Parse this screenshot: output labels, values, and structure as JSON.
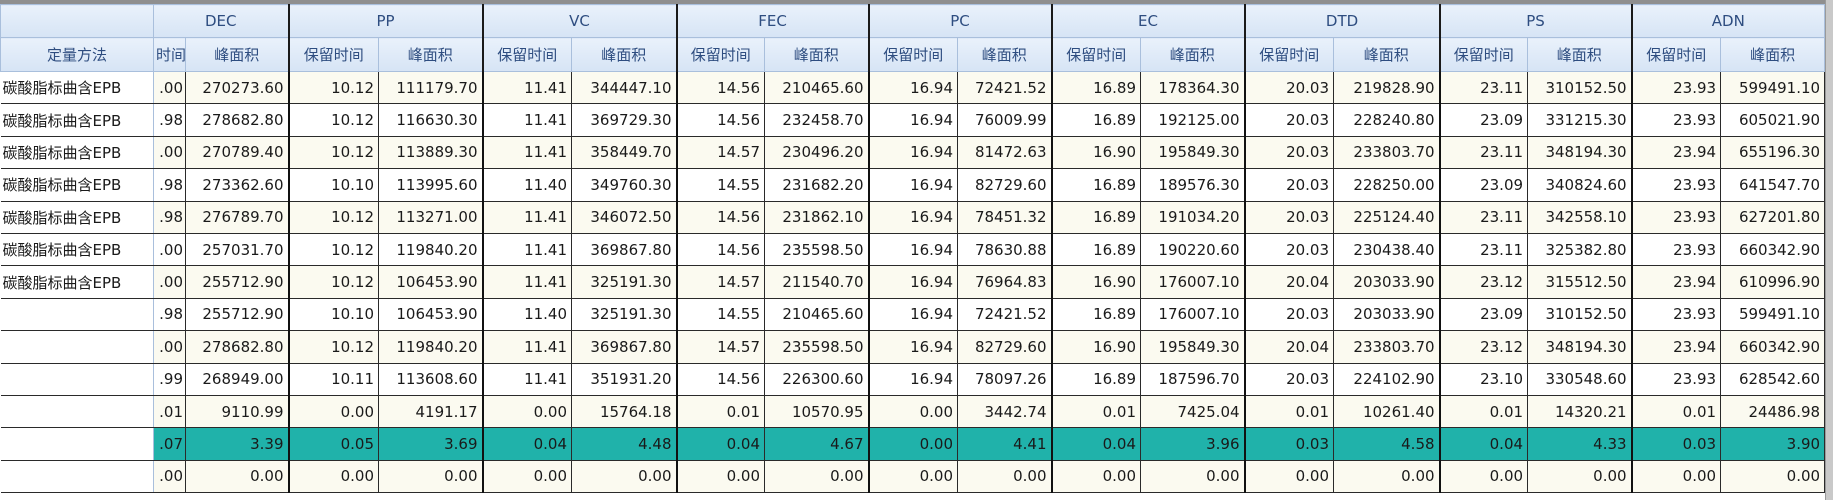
{
  "table": {
    "method_header": "定量方法",
    "sub_headers": {
      "retention_time": "保留时间",
      "retention_time_partial": "时间",
      "peak_area": "峰面积"
    },
    "groups": [
      "DEC",
      "PP",
      "VC",
      "FEC",
      "PC",
      "EC",
      "DTD",
      "PS",
      "ADN"
    ],
    "highlight_color": "#20b2aa",
    "rows": [
      {
        "method": "碳酸脂标曲含EPB",
        "values": [
          ".00",
          "270273.60",
          "10.12",
          "111179.70",
          "11.41",
          "344447.10",
          "14.56",
          "210465.60",
          "16.94",
          "72421.52",
          "16.89",
          "178364.30",
          "20.03",
          "219828.90",
          "23.11",
          "310152.50",
          "23.93",
          "599491.10"
        ]
      },
      {
        "method": "碳酸脂标曲含EPB",
        "values": [
          ".98",
          "278682.80",
          "10.12",
          "116630.30",
          "11.41",
          "369729.30",
          "14.56",
          "232458.70",
          "16.94",
          "76009.99",
          "16.89",
          "192125.00",
          "20.03",
          "228240.80",
          "23.09",
          "331215.30",
          "23.93",
          "605021.90"
        ]
      },
      {
        "method": "碳酸脂标曲含EPB",
        "values": [
          ".00",
          "270789.40",
          "10.12",
          "113889.30",
          "11.41",
          "358449.70",
          "14.57",
          "230496.20",
          "16.94",
          "81472.63",
          "16.90",
          "195849.30",
          "20.03",
          "233803.70",
          "23.11",
          "348194.30",
          "23.94",
          "655196.30"
        ]
      },
      {
        "method": "碳酸脂标曲含EPB",
        "values": [
          ".98",
          "273362.60",
          "10.10",
          "113995.60",
          "11.40",
          "349760.30",
          "14.55",
          "231682.20",
          "16.94",
          "82729.60",
          "16.89",
          "189576.30",
          "20.03",
          "228250.00",
          "23.09",
          "340824.60",
          "23.93",
          "641547.70"
        ]
      },
      {
        "method": "碳酸脂标曲含EPB",
        "values": [
          ".98",
          "276789.70",
          "10.12",
          "113271.00",
          "11.41",
          "346072.50",
          "14.56",
          "231862.10",
          "16.94",
          "78451.32",
          "16.89",
          "191034.20",
          "20.03",
          "225124.40",
          "23.11",
          "342558.10",
          "23.93",
          "627201.80"
        ]
      },
      {
        "method": "碳酸脂标曲含EPB",
        "values": [
          ".00",
          "257031.70",
          "10.12",
          "119840.20",
          "11.41",
          "369867.80",
          "14.56",
          "235598.50",
          "16.94",
          "78630.88",
          "16.89",
          "190220.60",
          "20.03",
          "230438.40",
          "23.11",
          "325382.80",
          "23.93",
          "660342.90"
        ]
      },
      {
        "method": "碳酸脂标曲含EPB",
        "values": [
          ".00",
          "255712.90",
          "10.12",
          "106453.90",
          "11.41",
          "325191.30",
          "14.57",
          "211540.70",
          "16.94",
          "76964.83",
          "16.90",
          "176007.10",
          "20.04",
          "203033.90",
          "23.12",
          "315512.50",
          "23.94",
          "610996.90"
        ]
      },
      {
        "method": "",
        "values": [
          ".98",
          "255712.90",
          "10.10",
          "106453.90",
          "11.40",
          "325191.30",
          "14.55",
          "210465.60",
          "16.94",
          "72421.52",
          "16.89",
          "176007.10",
          "20.03",
          "203033.90",
          "23.09",
          "310152.50",
          "23.93",
          "599491.10"
        ]
      },
      {
        "method": "",
        "values": [
          ".00",
          "278682.80",
          "10.12",
          "119840.20",
          "11.41",
          "369867.80",
          "14.57",
          "235598.50",
          "16.94",
          "82729.60",
          "16.90",
          "195849.30",
          "20.04",
          "233803.70",
          "23.12",
          "348194.30",
          "23.94",
          "660342.90"
        ]
      },
      {
        "method": "",
        "values": [
          ".99",
          "268949.00",
          "10.11",
          "113608.60",
          "11.41",
          "351931.20",
          "14.56",
          "226300.60",
          "16.94",
          "78097.26",
          "16.89",
          "187596.70",
          "20.03",
          "224102.90",
          "23.10",
          "330548.60",
          "23.93",
          "628542.60"
        ]
      },
      {
        "method": "",
        "values": [
          ".01",
          "9110.99",
          "0.00",
          "4191.17",
          "0.00",
          "15764.18",
          "0.01",
          "10570.95",
          "0.00",
          "3442.74",
          "0.01",
          "7425.04",
          "0.01",
          "10261.40",
          "0.01",
          "14320.21",
          "0.01",
          "24486.98"
        ]
      },
      {
        "method": "",
        "highlight": true,
        "values": [
          ".07",
          "3.39",
          "0.05",
          "3.69",
          "0.04",
          "4.48",
          "0.04",
          "4.67",
          "0.00",
          "4.41",
          "0.04",
          "3.96",
          "0.03",
          "4.58",
          "0.04",
          "4.33",
          "0.03",
          "3.90"
        ]
      },
      {
        "method": "",
        "values": [
          ".00",
          "0.00",
          "0.00",
          "0.00",
          "0.00",
          "0.00",
          "0.00",
          "0.00",
          "0.00",
          "0.00",
          "0.00",
          "0.00",
          "0.00",
          "0.00",
          "0.00",
          "0.00",
          "0.00",
          "0.00"
        ]
      }
    ]
  }
}
